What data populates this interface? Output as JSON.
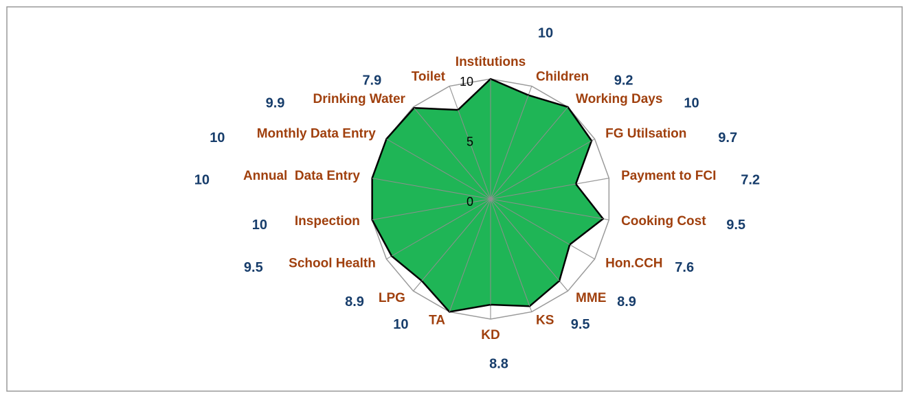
{
  "chart_data": {
    "type": "radar",
    "categories": [
      "Institutions",
      "Children",
      "Working Days",
      "FG Utilsation",
      "Payment to FCI",
      "Cooking Cost",
      "Hon.CCH",
      "MME",
      "KS",
      "KD",
      "TA",
      "LPG",
      "School Health",
      "Inspection",
      "Annual  Data Entry",
      "Monthly Data Entry",
      "Drinking Water",
      "Toilet"
    ],
    "values": [
      10,
      9.2,
      10,
      9.7,
      7.2,
      9.5,
      7.6,
      8.9,
      9.5,
      8.8,
      10,
      8.9,
      9.5,
      10,
      10,
      10,
      9.9,
      7.9
    ],
    "color": "#1fb556",
    "ylim": [
      0,
      10
    ],
    "yticks": [
      0,
      5,
      10
    ],
    "grid": true
  }
}
